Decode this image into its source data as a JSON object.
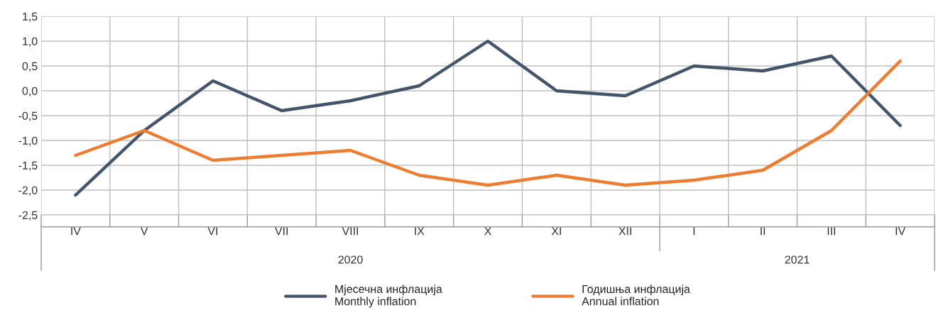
{
  "chart_data": {
    "type": "line",
    "categories": [
      "IV",
      "V",
      "VI",
      "VII",
      "VIII",
      "IX",
      "X",
      "XI",
      "XII",
      "I",
      "II",
      "III",
      "IV"
    ],
    "series": [
      {
        "name": "Мјесечна инфлација\nMonthly inflation",
        "color": "#44546a",
        "values": [
          -2.1,
          -0.8,
          0.2,
          -0.4,
          -0.2,
          0.1,
          1.0,
          0.0,
          -0.1,
          0.5,
          0.4,
          0.7,
          -0.7
        ]
      },
      {
        "name": "Годишња инфлација\nAnnual inflation",
        "color": "#ed7d31",
        "values": [
          -1.3,
          -0.8,
          -1.4,
          -1.3,
          -1.2,
          -1.7,
          -1.9,
          -1.7,
          -1.9,
          -1.8,
          -1.6,
          -0.8,
          0.6
        ]
      }
    ],
    "annotations": [
      "2020",
      "2021"
    ],
    "ylim": [
      -2.5,
      1.5
    ],
    "yticks": [
      {
        "value": -2.5,
        "label": "-2,5"
      },
      {
        "value": -2.0,
        "label": "-2,0"
      },
      {
        "value": -1.5,
        "label": "-1,5"
      },
      {
        "value": -1.0,
        "label": "-1,0"
      },
      {
        "value": -0.5,
        "label": "-0,5"
      },
      {
        "value": 0.0,
        "label": "0,0"
      },
      {
        "value": 0.5,
        "label": "0,5"
      },
      {
        "value": 1.0,
        "label": "1,0"
      },
      {
        "value": 1.5,
        "label": "1,5"
      }
    ],
    "grid": true,
    "legend": "bottom",
    "marker": "none",
    "line_style": "solid"
  }
}
